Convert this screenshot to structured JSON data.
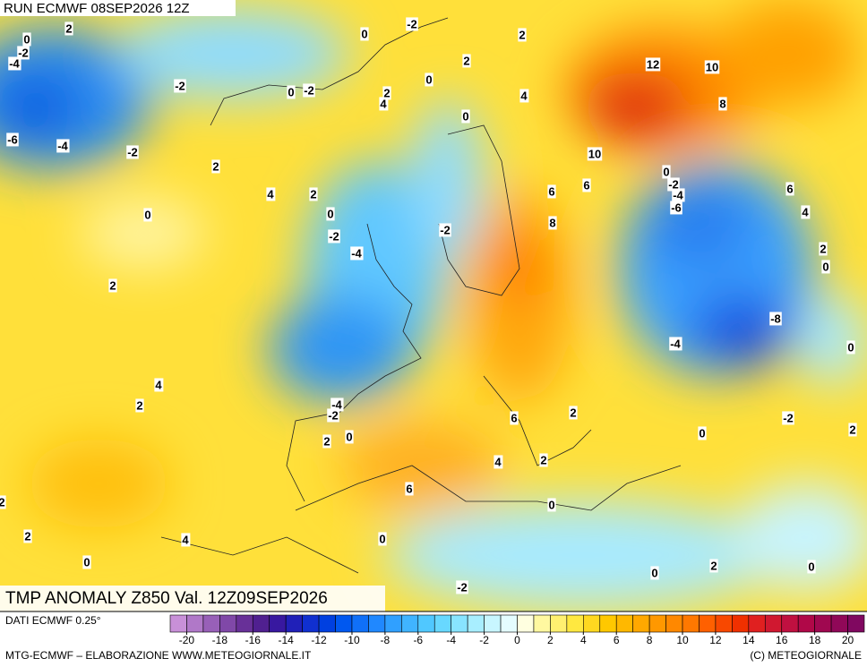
{
  "header": {
    "run": "RUN ECMWF 08SEP2026 12Z"
  },
  "map_labels": [
    "0",
    "2",
    "-2",
    "-4",
    "0",
    "-2",
    "2",
    "2",
    "-2",
    "0",
    "-2",
    "2",
    "4",
    "0",
    "4",
    "0",
    "12",
    "10",
    "8",
    "-6",
    "-4",
    "-2",
    "2",
    "4",
    "2",
    "0",
    "0",
    "10",
    "6",
    "6",
    "0",
    "-2",
    "-4",
    "-6",
    "6",
    "4",
    "-2",
    "-4",
    "-2",
    "8",
    "2",
    "0",
    "2",
    "-8",
    "-4",
    "0",
    "4",
    "2",
    "-4",
    "-2",
    "6",
    "2",
    "-2",
    "0",
    "2",
    "2",
    "0",
    "4",
    "2",
    "6",
    "0",
    "2",
    "2",
    "4",
    "0",
    "0",
    "2",
    "0",
    "0",
    "-2"
  ],
  "footer": {
    "title": "TMP ANOMALY Z850 Val. 12Z09SEP2026",
    "source": "DATI ECMWF 0.25°",
    "credit": "MTG-ECMWF – ELABORAZIONE WWW.METEOGIORNALE.IT",
    "copyright": "(C) METEOGIORNALE"
  },
  "legend": {
    "lim": [
      -21,
      21
    ],
    "ticks": [
      -20,
      -18,
      -16,
      -14,
      -12,
      -10,
      -8,
      -6,
      -4,
      -2,
      0,
      2,
      4,
      6,
      8,
      10,
      12,
      14,
      16,
      18,
      20
    ],
    "colors": [
      "#c890d8",
      "#b078c8",
      "#9860b8",
      "#8048a8",
      "#683098",
      "#502090",
      "#3818a0",
      "#2020b8",
      "#1030d0",
      "#0040e0",
      "#0058f0",
      "#1070f8",
      "#2088ff",
      "#30a0ff",
      "#40b4ff",
      "#50c8ff",
      "#68d8ff",
      "#88e4ff",
      "#a8eeff",
      "#c8f6ff",
      "#e4fcff",
      "#ffffe0",
      "#fff8a0",
      "#fff070",
      "#ffe840",
      "#ffd820",
      "#ffc800",
      "#ffb800",
      "#ffa800",
      "#ff9800",
      "#ff8800",
      "#ff7800",
      "#ff6000",
      "#f84800",
      "#f03000",
      "#e02020",
      "#d01830",
      "#c01040",
      "#b00848",
      "#a00850",
      "#900858",
      "#800860"
    ]
  }
}
